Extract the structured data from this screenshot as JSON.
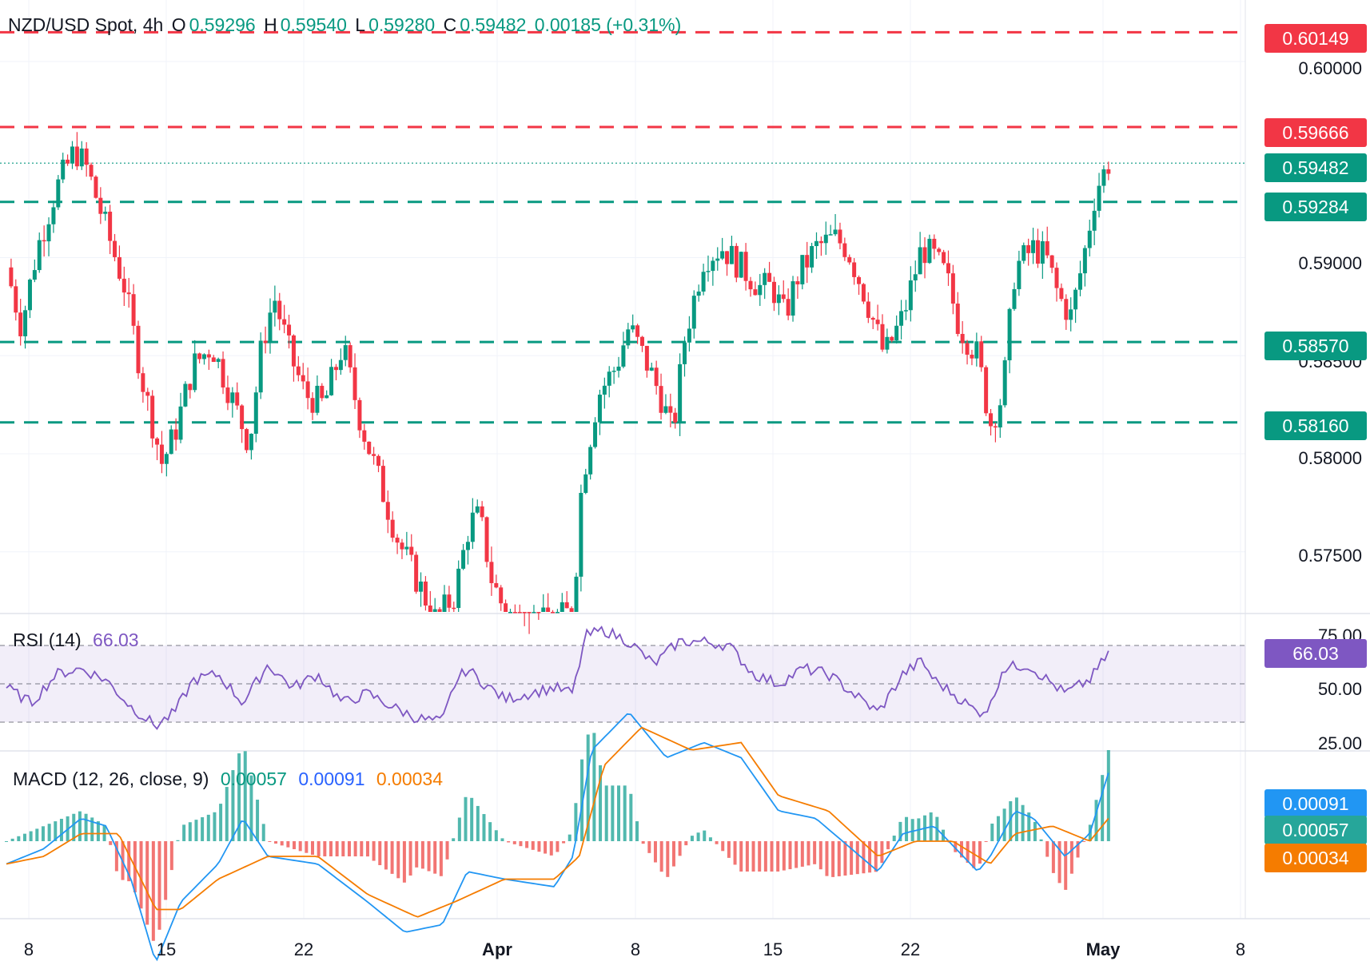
{
  "header": {
    "symbol": "NZD/USD Spot, 4h",
    "o_label": "O",
    "o": "0.59296",
    "h_label": "H",
    "h": "0.59540",
    "l_label": "L",
    "l": "0.59280",
    "c_label": "C",
    "c": "0.59482",
    "change": "0.00185 (+0.31%)"
  },
  "colors": {
    "up": "#089981",
    "down": "#f23645",
    "rsi": "#7e57c2",
    "macd": "#2962ff",
    "signal": "#f57c00",
    "resistance": "#f23645",
    "support": "#089981"
  },
  "levels": [
    {
      "value": 0.60149,
      "label": "0.60149",
      "kind": "resistance"
    },
    {
      "value": 0.59666,
      "label": "0.59666",
      "kind": "resistance"
    },
    {
      "value": 0.59284,
      "label": "0.59284",
      "kind": "support"
    },
    {
      "value": 0.5857,
      "label": "0.58570",
      "kind": "support"
    },
    {
      "value": 0.5816,
      "label": "0.58160",
      "kind": "support"
    }
  ],
  "last_price": {
    "value": 0.59482,
    "label": "0.59482"
  },
  "price_axis": [
    "0.60000",
    "0.59000",
    "0.58500",
    "0.58000",
    "0.57500"
  ],
  "x_axis": [
    "8",
    "15",
    "22",
    "Apr",
    "8",
    "15",
    "22",
    "May",
    "8"
  ],
  "rsi": {
    "label": "RSI (14)",
    "value": "66.03",
    "levels": [
      "75.00",
      "50.00",
      "25.00"
    ]
  },
  "macd": {
    "label": "MACD (12, 26, close, 9)",
    "hist": "0.00057",
    "macd": "0.00091",
    "signal": "0.00034"
  },
  "chart_data": {
    "type": "candlestick",
    "title": "NZD/USD Spot, 4h",
    "ylim": [
      0.5708,
      0.6022
    ],
    "price_path": [
      [
        0,
        0.5895
      ],
      [
        0.012,
        0.5865
      ],
      [
        0.025,
        0.5905
      ],
      [
        0.04,
        0.5935
      ],
      [
        0.055,
        0.5955
      ],
      [
        0.065,
        0.5945
      ],
      [
        0.08,
        0.5915
      ],
      [
        0.095,
        0.5885
      ],
      [
        0.11,
        0.5835
      ],
      [
        0.125,
        0.5795
      ],
      [
        0.135,
        0.581
      ],
      [
        0.15,
        0.5845
      ],
      [
        0.165,
        0.5855
      ],
      [
        0.18,
        0.583
      ],
      [
        0.195,
        0.5805
      ],
      [
        0.205,
        0.5855
      ],
      [
        0.215,
        0.588
      ],
      [
        0.228,
        0.585
      ],
      [
        0.24,
        0.583
      ],
      [
        0.255,
        0.5825
      ],
      [
        0.27,
        0.5855
      ],
      [
        0.285,
        0.5815
      ],
      [
        0.3,
        0.5785
      ],
      [
        0.315,
        0.5755
      ],
      [
        0.33,
        0.5735
      ],
      [
        0.345,
        0.5715
      ],
      [
        0.36,
        0.5728
      ],
      [
        0.372,
        0.5765
      ],
      [
        0.38,
        0.5768
      ],
      [
        0.39,
        0.5735
      ],
      [
        0.4,
        0.572
      ],
      [
        0.42,
        0.5712
      ],
      [
        0.44,
        0.5715
      ],
      [
        0.455,
        0.572
      ],
      [
        0.462,
        0.5785
      ],
      [
        0.475,
        0.583
      ],
      [
        0.49,
        0.5845
      ],
      [
        0.5,
        0.5865
      ],
      [
        0.515,
        0.5845
      ],
      [
        0.525,
        0.583
      ],
      [
        0.535,
        0.581
      ],
      [
        0.545,
        0.586
      ],
      [
        0.56,
        0.59
      ],
      [
        0.575,
        0.5905
      ],
      [
        0.59,
        0.5895
      ],
      [
        0.605,
        0.5885
      ],
      [
        0.615,
        0.5885
      ],
      [
        0.625,
        0.587
      ],
      [
        0.635,
        0.589
      ],
      [
        0.65,
        0.5905
      ],
      [
        0.665,
        0.591
      ],
      [
        0.675,
        0.5905
      ],
      [
        0.69,
        0.588
      ],
      [
        0.705,
        0.585
      ],
      [
        0.72,
        0.587
      ],
      [
        0.735,
        0.5905
      ],
      [
        0.745,
        0.59
      ],
      [
        0.755,
        0.589
      ],
      [
        0.765,
        0.5865
      ],
      [
        0.78,
        0.585
      ],
      [
        0.79,
        0.5815
      ],
      [
        0.8,
        0.583
      ],
      [
        0.81,
        0.5895
      ],
      [
        0.825,
        0.5905
      ],
      [
        0.835,
        0.59
      ],
      [
        0.845,
        0.588
      ],
      [
        0.855,
        0.587
      ],
      [
        0.865,
        0.59
      ],
      [
        0.875,
        0.5935
      ],
      [
        0.885,
        0.5948
      ]
    ],
    "rsi_path": [
      [
        0,
        48
      ],
      [
        0.02,
        40
      ],
      [
        0.04,
        55
      ],
      [
        0.06,
        58
      ],
      [
        0.08,
        52
      ],
      [
        0.1,
        38
      ],
      [
        0.12,
        28
      ],
      [
        0.135,
        35
      ],
      [
        0.15,
        52
      ],
      [
        0.17,
        55
      ],
      [
        0.19,
        40
      ],
      [
        0.21,
        60
      ],
      [
        0.23,
        48
      ],
      [
        0.25,
        55
      ],
      [
        0.27,
        40
      ],
      [
        0.29,
        45
      ],
      [
        0.31,
        38
      ],
      [
        0.33,
        32
      ],
      [
        0.35,
        30
      ],
      [
        0.36,
        50
      ],
      [
        0.37,
        58
      ],
      [
        0.38,
        52
      ],
      [
        0.4,
        42
      ],
      [
        0.42,
        45
      ],
      [
        0.44,
        48
      ],
      [
        0.455,
        45
      ],
      [
        0.465,
        75
      ],
      [
        0.48,
        78
      ],
      [
        0.5,
        72
      ],
      [
        0.52,
        60
      ],
      [
        0.54,
        72
      ],
      [
        0.56,
        72
      ],
      [
        0.58,
        70
      ],
      [
        0.6,
        55
      ],
      [
        0.62,
        50
      ],
      [
        0.64,
        58
      ],
      [
        0.66,
        55
      ],
      [
        0.68,
        45
      ],
      [
        0.7,
        35
      ],
      [
        0.72,
        55
      ],
      [
        0.735,
        62
      ],
      [
        0.745,
        52
      ],
      [
        0.76,
        45
      ],
      [
        0.78,
        35
      ],
      [
        0.79,
        38
      ],
      [
        0.8,
        58
      ],
      [
        0.82,
        60
      ],
      [
        0.83,
        55
      ],
      [
        0.85,
        45
      ],
      [
        0.87,
        52
      ],
      [
        0.885,
        66
      ]
    ],
    "macd_path": [
      [
        0,
        -0.0003
      ],
      [
        0.03,
        -0.0001
      ],
      [
        0.06,
        0.0003
      ],
      [
        0.08,
        0.0002
      ],
      [
        0.1,
        -0.0005
      ],
      [
        0.12,
        -0.0016
      ],
      [
        0.14,
        -0.0008
      ],
      [
        0.17,
        -0.0003
      ],
      [
        0.19,
        0.0003
      ],
      [
        0.21,
        -0.0002
      ],
      [
        0.25,
        -0.0003
      ],
      [
        0.29,
        -0.0008
      ],
      [
        0.32,
        -0.0012
      ],
      [
        0.35,
        -0.0011
      ],
      [
        0.37,
        -0.0004
      ],
      [
        0.4,
        -0.0005
      ],
      [
        0.44,
        -0.0006
      ],
      [
        0.455,
        -0.0002
      ],
      [
        0.47,
        0.0012
      ],
      [
        0.5,
        0.0017
      ],
      [
        0.53,
        0.0011
      ],
      [
        0.56,
        0.0013
      ],
      [
        0.59,
        0.0011
      ],
      [
        0.62,
        0.0004
      ],
      [
        0.65,
        0.0003
      ],
      [
        0.7,
        -0.0004
      ],
      [
        0.72,
        0.0001
      ],
      [
        0.745,
        0.0002
      ],
      [
        0.78,
        -0.0004
      ],
      [
        0.79,
        -0.0002
      ],
      [
        0.81,
        0.0004
      ],
      [
        0.825,
        0.0003
      ],
      [
        0.85,
        -0.0002
      ],
      [
        0.87,
        0.0001
      ],
      [
        0.885,
        0.0009
      ]
    ],
    "signal_path": [
      [
        0,
        -0.0003
      ],
      [
        0.03,
        -0.0002
      ],
      [
        0.06,
        0.0001
      ],
      [
        0.09,
        0.0001
      ],
      [
        0.12,
        -0.0009
      ],
      [
        0.14,
        -0.0009
      ],
      [
        0.17,
        -0.0005
      ],
      [
        0.21,
        -0.0002
      ],
      [
        0.25,
        -0.0002
      ],
      [
        0.29,
        -0.0007
      ],
      [
        0.33,
        -0.001
      ],
      [
        0.36,
        -0.0008
      ],
      [
        0.4,
        -0.0005
      ],
      [
        0.44,
        -0.0005
      ],
      [
        0.46,
        -0.0002
      ],
      [
        0.48,
        0.001
      ],
      [
        0.51,
        0.0015
      ],
      [
        0.55,
        0.0012
      ],
      [
        0.59,
        0.0013
      ],
      [
        0.62,
        0.0006
      ],
      [
        0.66,
        0.0004
      ],
      [
        0.7,
        -0.0002
      ],
      [
        0.73,
        0.0
      ],
      [
        0.76,
        0.0
      ],
      [
        0.79,
        -0.0003
      ],
      [
        0.81,
        0.0001
      ],
      [
        0.84,
        0.0002
      ],
      [
        0.87,
        0.0
      ],
      [
        0.885,
        0.0003
      ]
    ]
  }
}
